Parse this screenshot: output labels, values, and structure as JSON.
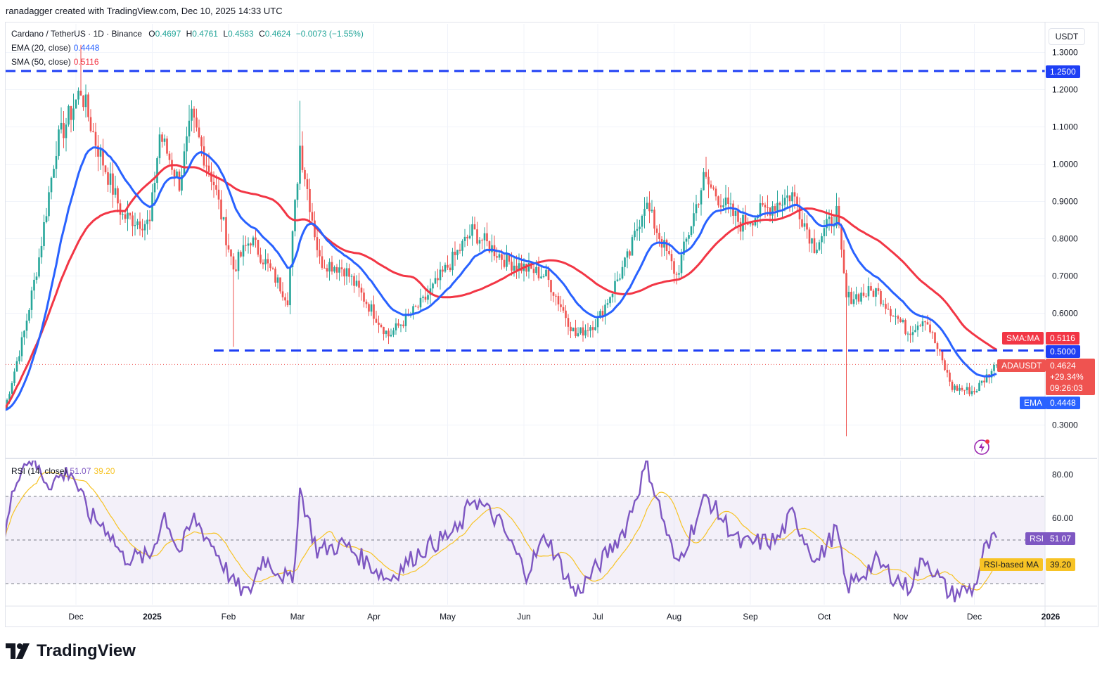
{
  "header": {
    "text": "ranadagger created with TradingView.com, Dec 10, 2025 14:33 UTC"
  },
  "legend": {
    "symbol": "Cardano / TetherUS · 1D · Binance",
    "o_label": "O",
    "o": "0.4697",
    "h_label": "H",
    "h": "0.4761",
    "l_label": "L",
    "l": "0.4583",
    "c_label": "C",
    "c": "0.4624",
    "change": "−0.0073 (−1.55%)",
    "ema_label": "EMA (20, close)",
    "ema": "0.4448",
    "sma_label": "SMA (50, close)",
    "sma": "0.5116",
    "rsi_label": "RSI (14, close)",
    "rsi": "51.07",
    "rsi_ma": "39.20"
  },
  "colors": {
    "up": "#26a69a",
    "down": "#ef5350",
    "ema": "#2962ff",
    "sma": "#f23645",
    "rsi": "#7e57c2",
    "rsi_ma": "#f7c325",
    "level": "#1e3ff5"
  },
  "currency": "USDT",
  "price_axis": {
    "ticks": [
      "1.3000",
      "1.2000",
      "1.1000",
      "1.0000",
      "0.9000",
      "0.8000",
      "0.7000",
      "0.6000",
      "0.3000"
    ]
  },
  "rsi_axis": {
    "ticks": [
      "80.00",
      "60.00"
    ]
  },
  "tags": {
    "level_high": "1.2500",
    "level_low": "0.5000",
    "sma_name": "SMA:MA",
    "sma_value": "0.5116",
    "symbol_name": "ADAUSDT",
    "price": "0.4624",
    "pct": "+29.34%",
    "countdown": "09:26:03",
    "ema_name": "EMA",
    "ema_value": "0.4448",
    "rsi_name": "RSI",
    "rsi_value": "51.07",
    "rsi_ma_name": "RSI-based MA",
    "rsi_ma_value": "39.20"
  },
  "time_axis": {
    "labels": [
      "Dec",
      "2025",
      "Feb",
      "Mar",
      "Apr",
      "May",
      "Jun",
      "Jul",
      "Aug",
      "Sep",
      "Oct",
      "Nov",
      "Dec",
      "2026"
    ]
  },
  "brand": "TradingView",
  "chart_data": {
    "type": "candlestick",
    "title": "Cardano / TetherUS · 1D · Binance",
    "ylim": [
      0.25,
      1.33
    ],
    "horizontal_levels": [
      1.25,
      0.5
    ],
    "months": [
      "Nov",
      "Dec",
      "Jan",
      "Feb",
      "Mar",
      "Apr",
      "May",
      "Jun",
      "Jul",
      "Aug",
      "Sep",
      "Oct",
      "Nov",
      "Dec"
    ],
    "close_anchors": [
      {
        "date": "2024-11-02",
        "close": 0.34
      },
      {
        "date": "2024-11-10",
        "close": 0.55
      },
      {
        "date": "2024-11-16",
        "close": 0.75
      },
      {
        "date": "2024-11-23",
        "close": 1.05
      },
      {
        "date": "2024-12-03",
        "close": 1.2
      },
      {
        "date": "2024-12-09",
        "close": 1.06
      },
      {
        "date": "2024-12-20",
        "close": 0.86
      },
      {
        "date": "2024-12-31",
        "close": 0.84
      },
      {
        "date": "2025-01-04",
        "close": 1.08
      },
      {
        "date": "2025-01-12",
        "close": 0.95
      },
      {
        "date": "2025-01-17",
        "close": 1.12
      },
      {
        "date": "2025-01-26",
        "close": 0.95
      },
      {
        "date": "2025-02-03",
        "close": 0.72
      },
      {
        "date": "2025-02-10",
        "close": 0.8
      },
      {
        "date": "2025-02-25",
        "close": 0.64
      },
      {
        "date": "2025-03-02",
        "close": 1.05
      },
      {
        "date": "2025-03-10",
        "close": 0.74
      },
      {
        "date": "2025-03-20",
        "close": 0.72
      },
      {
        "date": "2025-04-07",
        "close": 0.54
      },
      {
        "date": "2025-04-21",
        "close": 0.63
      },
      {
        "date": "2025-05-11",
        "close": 0.82
      },
      {
        "date": "2025-05-25",
        "close": 0.74
      },
      {
        "date": "2025-06-10",
        "close": 0.7
      },
      {
        "date": "2025-06-22",
        "close": 0.54
      },
      {
        "date": "2025-07-01",
        "close": 0.58
      },
      {
        "date": "2025-07-14",
        "close": 0.76
      },
      {
        "date": "2025-07-20",
        "close": 0.9
      },
      {
        "date": "2025-08-02",
        "close": 0.7
      },
      {
        "date": "2025-08-13",
        "close": 0.96
      },
      {
        "date": "2025-08-28",
        "close": 0.84
      },
      {
        "date": "2025-09-18",
        "close": 0.92
      },
      {
        "date": "2025-09-27",
        "close": 0.78
      },
      {
        "date": "2025-10-06",
        "close": 0.87
      },
      {
        "date": "2025-10-10",
        "close": 0.64
      },
      {
        "date": "2025-10-22",
        "close": 0.66
      },
      {
        "date": "2025-11-04",
        "close": 0.55
      },
      {
        "date": "2025-11-11",
        "close": 0.59
      },
      {
        "date": "2025-11-22",
        "close": 0.4
      },
      {
        "date": "2025-12-01",
        "close": 0.39
      },
      {
        "date": "2025-12-10",
        "close": 0.4624
      }
    ],
    "indicators": {
      "ema": {
        "name": "EMA (20, close)",
        "last": 0.4448
      },
      "sma": {
        "name": "SMA (50, close)",
        "last": 0.5116
      }
    },
    "rsi": {
      "name": "RSI (14, close)",
      "last": 51.07,
      "ma_last": 39.2,
      "bands": [
        70,
        50,
        30
      ],
      "ylim": [
        20,
        88
      ],
      "series": [
        {
          "date": "2024-11-02",
          "value": 52
        },
        {
          "date": "2024-11-07",
          "value": 80
        },
        {
          "date": "2024-11-12",
          "value": 88
        },
        {
          "date": "2024-11-20",
          "value": 76
        },
        {
          "date": "2024-11-29",
          "value": 82
        },
        {
          "date": "2024-12-06",
          "value": 62
        },
        {
          "date": "2024-12-14",
          "value": 55
        },
        {
          "date": "2024-12-20",
          "value": 42
        },
        {
          "date": "2024-12-31",
          "value": 42
        },
        {
          "date": "2025-01-06",
          "value": 62
        },
        {
          "date": "2025-01-12",
          "value": 44
        },
        {
          "date": "2025-01-18",
          "value": 60
        },
        {
          "date": "2025-01-27",
          "value": 45
        },
        {
          "date": "2025-02-03",
          "value": 30
        },
        {
          "date": "2025-02-09",
          "value": 25
        },
        {
          "date": "2025-02-15",
          "value": 42
        },
        {
          "date": "2025-02-27",
          "value": 30
        },
        {
          "date": "2025-03-02",
          "value": 73
        },
        {
          "date": "2025-03-09",
          "value": 45
        },
        {
          "date": "2025-03-20",
          "value": 48
        },
        {
          "date": "2025-04-07",
          "value": 32
        },
        {
          "date": "2025-04-20",
          "value": 45
        },
        {
          "date": "2025-05-06",
          "value": 55
        },
        {
          "date": "2025-05-11",
          "value": 70
        },
        {
          "date": "2025-05-22",
          "value": 58
        },
        {
          "date": "2025-06-02",
          "value": 35
        },
        {
          "date": "2025-06-10",
          "value": 52
        },
        {
          "date": "2025-06-22",
          "value": 25
        },
        {
          "date": "2025-07-01",
          "value": 38
        },
        {
          "date": "2025-07-12",
          "value": 55
        },
        {
          "date": "2025-07-21",
          "value": 85
        },
        {
          "date": "2025-08-02",
          "value": 38
        },
        {
          "date": "2025-08-14",
          "value": 70
        },
        {
          "date": "2025-08-28",
          "value": 48
        },
        {
          "date": "2025-09-12",
          "value": 50
        },
        {
          "date": "2025-09-18",
          "value": 62
        },
        {
          "date": "2025-09-28",
          "value": 40
        },
        {
          "date": "2025-10-06",
          "value": 55
        },
        {
          "date": "2025-10-10",
          "value": 28
        },
        {
          "date": "2025-10-22",
          "value": 40
        },
        {
          "date": "2025-11-04",
          "value": 28
        },
        {
          "date": "2025-11-11",
          "value": 42
        },
        {
          "date": "2025-11-21",
          "value": 25
        },
        {
          "date": "2025-12-01",
          "value": 28
        },
        {
          "date": "2025-12-05",
          "value": 45
        },
        {
          "date": "2025-12-10",
          "value": 51.07
        }
      ]
    }
  }
}
